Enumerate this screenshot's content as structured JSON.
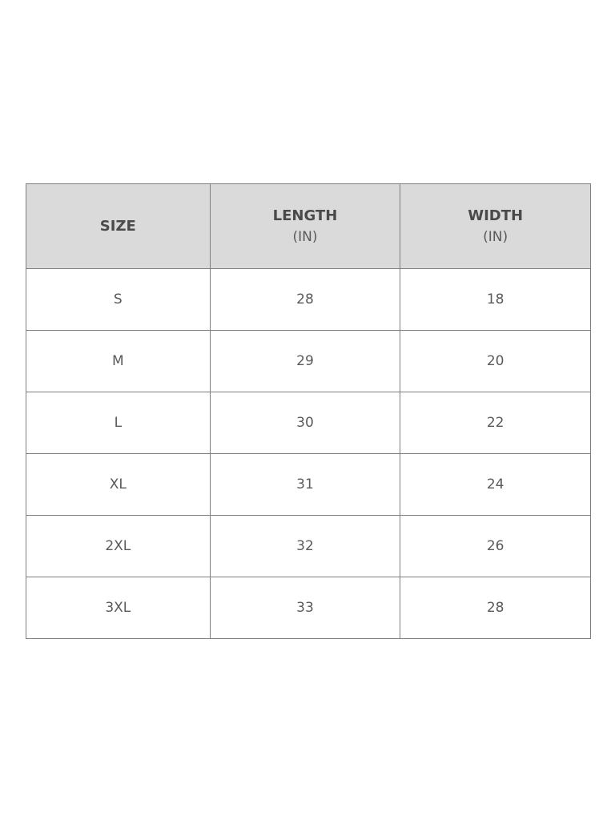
{
  "headers": [
    {
      "label": "SIZE",
      "unit": ""
    },
    {
      "label": "LENGTH",
      "unit": "(IN)"
    },
    {
      "label": "WIDTH",
      "unit": "(IN)"
    }
  ],
  "rows": [
    [
      "S",
      "28",
      "18"
    ],
    [
      "M",
      "29",
      "20"
    ],
    [
      "L",
      "30",
      "22"
    ],
    [
      "XL",
      "31",
      "24"
    ],
    [
      "2XL",
      "32",
      "26"
    ],
    [
      "3XL",
      "33",
      "28"
    ]
  ]
}
